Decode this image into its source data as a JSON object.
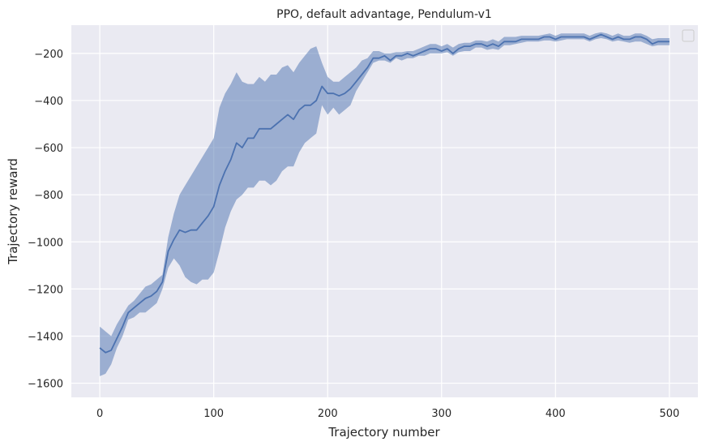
{
  "chart_data": {
    "type": "line",
    "title": "PPO, default advantage, Pendulum-v1",
    "xlabel": "Trajectory number",
    "ylabel": "Trajectory reward",
    "xlim": [
      -25,
      525
    ],
    "ylim": [
      -1660,
      -80
    ],
    "x_ticks": [
      0,
      100,
      200,
      300,
      400,
      500
    ],
    "y_ticks": [
      -1600,
      -1400,
      -1200,
      -1000,
      -800,
      -600,
      -400,
      -200
    ],
    "grid": true,
    "legend": "top-right, empty",
    "colors": {
      "plot_background": "#EAEAF2",
      "grid": "#FFFFFF",
      "line": "#4C72B0",
      "band": "#4C72B0"
    },
    "series": [
      {
        "x": [
          0,
          5,
          10,
          15,
          20,
          25,
          30,
          35,
          40,
          45,
          50,
          55,
          60,
          65,
          70,
          75,
          80,
          85,
          90,
          95,
          100,
          105,
          110,
          115,
          120,
          125,
          130,
          135,
          140,
          145,
          150,
          155,
          160,
          165,
          170,
          175,
          180,
          185,
          190,
          195,
          200,
          205,
          210,
          215,
          220,
          225,
          230,
          235,
          240,
          245,
          250,
          255,
          260,
          265,
          270,
          275,
          280,
          285,
          290,
          295,
          300,
          305,
          310,
          315,
          320,
          325,
          330,
          335,
          340,
          345,
          350,
          355,
          360,
          365,
          370,
          375,
          380,
          385,
          390,
          395,
          400,
          405,
          410,
          415,
          420,
          425,
          430,
          435,
          440,
          445,
          450,
          455,
          460,
          465,
          470,
          475,
          480,
          485,
          490,
          495,
          500
        ],
        "mean": [
          -1450,
          -1470,
          -1460,
          -1410,
          -1360,
          -1300,
          -1280,
          -1260,
          -1240,
          -1230,
          -1210,
          -1170,
          -1040,
          -990,
          -950,
          -960,
          -950,
          -950,
          -920,
          -890,
          -850,
          -760,
          -700,
          -650,
          -580,
          -600,
          -560,
          -560,
          -520,
          -520,
          -520,
          -500,
          -480,
          -460,
          -480,
          -440,
          -420,
          -420,
          -400,
          -340,
          -370,
          -370,
          -380,
          -370,
          -350,
          -320,
          -290,
          -260,
          -220,
          -220,
          -210,
          -230,
          -210,
          -210,
          -200,
          -210,
          -200,
          -190,
          -180,
          -180,
          -190,
          -180,
          -200,
          -180,
          -170,
          -170,
          -160,
          -160,
          -170,
          -160,
          -170,
          -150,
          -150,
          -150,
          -140,
          -140,
          -140,
          -140,
          -130,
          -130,
          -140,
          -130,
          -130,
          -130,
          -130,
          -130,
          -140,
          -130,
          -120,
          -130,
          -140,
          -130,
          -140,
          -140,
          -130,
          -130,
          -140,
          -160,
          -150,
          -150,
          -150
        ],
        "lower": [
          -1570,
          -1560,
          -1520,
          -1450,
          -1400,
          -1330,
          -1320,
          -1300,
          -1300,
          -1280,
          -1260,
          -1200,
          -1110,
          -1070,
          -1100,
          -1150,
          -1170,
          -1180,
          -1160,
          -1160,
          -1130,
          -1040,
          -940,
          -870,
          -820,
          -800,
          -770,
          -770,
          -740,
          -740,
          -760,
          -740,
          -700,
          -680,
          -680,
          -620,
          -580,
          -560,
          -540,
          -420,
          -460,
          -430,
          -460,
          -440,
          -420,
          -360,
          -320,
          -280,
          -240,
          -230,
          -230,
          -240,
          -220,
          -230,
          -220,
          -220,
          -210,
          -210,
          -200,
          -200,
          -200,
          -195,
          -210,
          -195,
          -190,
          -190,
          -175,
          -175,
          -185,
          -180,
          -185,
          -165,
          -165,
          -160,
          -155,
          -150,
          -150,
          -150,
          -145,
          -145,
          -150,
          -145,
          -140,
          -140,
          -140,
          -140,
          -150,
          -140,
          -135,
          -140,
          -150,
          -145,
          -150,
          -155,
          -150,
          -150,
          -160,
          -170,
          -165,
          -165,
          -165
        ],
        "upper": [
          -1360,
          -1380,
          -1400,
          -1350,
          -1310,
          -1270,
          -1250,
          -1220,
          -1190,
          -1180,
          -1160,
          -1140,
          -980,
          -880,
          -800,
          -760,
          -720,
          -680,
          -640,
          -600,
          -560,
          -430,
          -370,
          -330,
          -280,
          -320,
          -330,
          -330,
          -300,
          -320,
          -290,
          -290,
          -260,
          -250,
          -280,
          -240,
          -210,
          -180,
          -170,
          -240,
          -300,
          -320,
          -320,
          -300,
          -280,
          -260,
          -230,
          -220,
          -190,
          -190,
          -200,
          -200,
          -195,
          -195,
          -190,
          -190,
          -180,
          -170,
          -160,
          -160,
          -170,
          -160,
          -175,
          -160,
          -155,
          -155,
          -145,
          -145,
          -150,
          -140,
          -150,
          -130,
          -130,
          -130,
          -125,
          -125,
          -125,
          -125,
          -120,
          -115,
          -125,
          -115,
          -115,
          -115,
          -115,
          -115,
          -125,
          -115,
          -110,
          -115,
          -125,
          -115,
          -125,
          -125,
          -115,
          -115,
          -125,
          -140,
          -135,
          -135,
          -135
        ]
      }
    ]
  }
}
